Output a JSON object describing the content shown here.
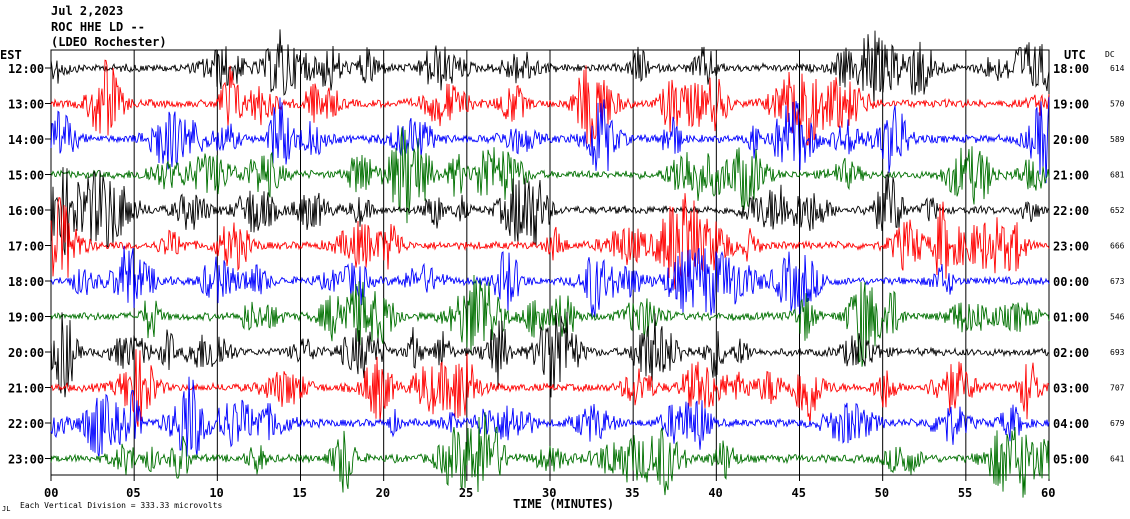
{
  "header": {
    "date": "Jul 2,2023",
    "station": "ROC HHE LD --",
    "network": "(LDEO Rochester)"
  },
  "left_axis_label": "EST",
  "right_axis_label": "UTC",
  "dc_label": "DC",
  "footer_mark": "JL",
  "footer_note": "Each Vertical Division = 333.33 microvolts",
  "colors": {
    "trace_cycle": [
      "#000000",
      "#ff0000",
      "#0000ff",
      "#007000"
    ],
    "background": "#ffffff",
    "grid": "#000000"
  },
  "chart_data": {
    "type": "line",
    "chart_kind": "helicorder seismogram",
    "xlabel": "TIME (MINUTES)",
    "xlim": [
      0,
      60
    ],
    "x_ticks": [
      "00",
      "05",
      "10",
      "15",
      "20",
      "25",
      "30",
      "35",
      "40",
      "45",
      "50",
      "55",
      "60"
    ],
    "grid": true,
    "rows": [
      {
        "est": "12:00",
        "utc": "18:00",
        "dc": "614"
      },
      {
        "est": "13:00",
        "utc": "19:00",
        "dc": "570"
      },
      {
        "est": "14:00",
        "utc": "20:00",
        "dc": "589"
      },
      {
        "est": "15:00",
        "utc": "21:00",
        "dc": "681"
      },
      {
        "est": "16:00",
        "utc": "22:00",
        "dc": "652"
      },
      {
        "est": "17:00",
        "utc": "23:00",
        "dc": "666"
      },
      {
        "est": "18:00",
        "utc": "00:00",
        "dc": "673"
      },
      {
        "est": "19:00",
        "utc": "01:00",
        "dc": "546"
      },
      {
        "est": "20:00",
        "utc": "02:00",
        "dc": "693"
      },
      {
        "est": "21:00",
        "utc": "03:00",
        "dc": "707"
      },
      {
        "est": "22:00",
        "utc": "04:00",
        "dc": "679"
      },
      {
        "est": "23:00",
        "utc": "05:00",
        "dc": "641"
      }
    ]
  }
}
